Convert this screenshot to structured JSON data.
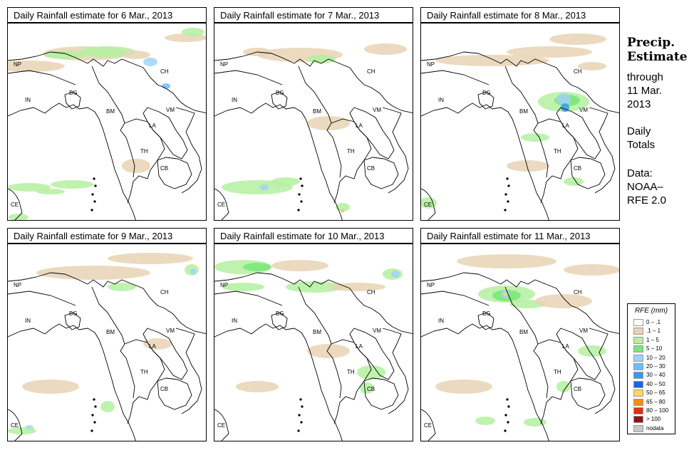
{
  "panels": [
    {
      "title": "Daily Rainfall estimate for  6 Mar., 2013"
    },
    {
      "title": "Daily Rainfall estimate for  7 Mar., 2013"
    },
    {
      "title": "Daily Rainfall estimate for  8 Mar., 2013"
    },
    {
      "title": "Daily Rainfall estimate for  9 Mar., 2013"
    },
    {
      "title": "Daily Rainfall estimate for  10 Mar., 2013"
    },
    {
      "title": "Daily Rainfall estimate for  11 Mar., 2013"
    }
  ],
  "country_labels": [
    "NP",
    "IN",
    "BG",
    "BM",
    "CH",
    "VM",
    "LA",
    "TH",
    "CB",
    "CE"
  ],
  "sidebar": {
    "title_line1": "Precip.",
    "title_line2": "Estimate",
    "through": "through",
    "date_line1": "11 Mar.",
    "date_line2": "2013",
    "daily": "Daily",
    "totals": "Totals",
    "data": "Data:",
    "source1": "NOAA–",
    "source2": "RFE 2.0"
  },
  "legend": {
    "title": "RFE (mm)",
    "items": [
      {
        "label": "0 – .1",
        "color": "#ffffff"
      },
      {
        "label": ".1 – 1",
        "color": "#e8d4b4"
      },
      {
        "label": "1 – 5",
        "color": "#b4f0a0"
      },
      {
        "label": "5 – 10",
        "color": "#78e678"
      },
      {
        "label": "10 – 20",
        "color": "#a0d2fa"
      },
      {
        "label": "20 – 30",
        "color": "#6ebefa"
      },
      {
        "label": "30 – 40",
        "color": "#3c96f0"
      },
      {
        "label": "40 – 50",
        "color": "#1e64dc"
      },
      {
        "label": "50 – 65",
        "color": "#fadc50"
      },
      {
        "label": "65 – 80",
        "color": "#fa8c14"
      },
      {
        "label": "80 – 100",
        "color": "#dc3214"
      },
      {
        "label": "> 100",
        "color": "#8c1414"
      },
      {
        "label": "nodata",
        "color": "#c8c8c8"
      }
    ]
  }
}
